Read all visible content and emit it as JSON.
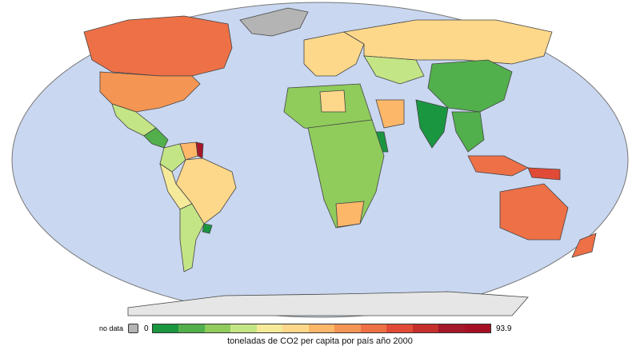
{
  "legend": {
    "no_data_label": "no data",
    "no_data_color": "#b4b4b4",
    "min_label": "0",
    "max_label": "93.9",
    "caption": "toneladas de CO2 per capita por país año 2000",
    "colors": [
      "#1a9641",
      "#52b04c",
      "#8fcc5c",
      "#c4e585",
      "#f5e99a",
      "#fed88a",
      "#fdb769",
      "#f59553",
      "#ee7047",
      "#e04a36",
      "#c42f2c",
      "#a5172a",
      "#a50f23"
    ]
  },
  "map": {
    "ocean_color": "#c9d7f0",
    "land_border_color": "#444444",
    "regions": [
      {
        "name": "Canada",
        "color": "#ee7047"
      },
      {
        "name": "Greenland",
        "color": "#b4b4b4"
      },
      {
        "name": "United States",
        "color": "#f59553"
      },
      {
        "name": "Mexico",
        "color": "#c4e585"
      },
      {
        "name": "Central America",
        "color": "#52b04c"
      },
      {
        "name": "Colombia",
        "color": "#c4e585"
      },
      {
        "name": "Venezuela",
        "color": "#fdb769"
      },
      {
        "name": "Brazil",
        "color": "#fed88a"
      },
      {
        "name": "Argentina",
        "color": "#c4e585"
      },
      {
        "name": "Uruguay",
        "color": "#1a9641"
      },
      {
        "name": "Guyana",
        "color": "#a5172a"
      },
      {
        "name": "Russia",
        "color": "#fed88a"
      },
      {
        "name": "Europe",
        "color": "#fed88a"
      },
      {
        "name": "China",
        "color": "#52b04c"
      },
      {
        "name": "India",
        "color": "#1a9641"
      },
      {
        "name": "Saudi Arabia",
        "color": "#fdb769"
      },
      {
        "name": "Africa",
        "color": "#8fcc5c"
      },
      {
        "name": "Ethiopia",
        "color": "#1a9641"
      },
      {
        "name": "Indonesia",
        "color": "#ee7047"
      },
      {
        "name": "Australia",
        "color": "#ee7047"
      },
      {
        "name": "New Zealand",
        "color": "#ee7047"
      },
      {
        "name": "Antarctica",
        "color": "#e6e6e6"
      }
    ]
  }
}
